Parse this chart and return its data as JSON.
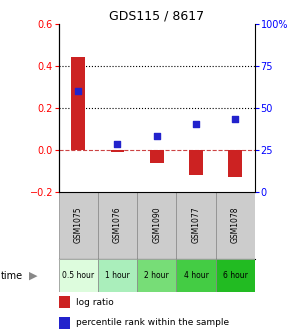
{
  "title": "GDS115 / 8617",
  "categories": [
    "GSM1075",
    "GSM1076",
    "GSM1090",
    "GSM1077",
    "GSM1078"
  ],
  "log_ratio": [
    0.44,
    -0.01,
    -0.065,
    -0.12,
    -0.13
  ],
  "percentile": [
    60,
    28,
    33,
    40,
    43
  ],
  "ylim_left": [
    -0.2,
    0.6
  ],
  "ylim_right": [
    0,
    100
  ],
  "yticks_left": [
    -0.2,
    0.0,
    0.2,
    0.4,
    0.6
  ],
  "yticks_right": [
    0,
    25,
    50,
    75,
    100
  ],
  "time_labels": [
    "0.5 hour",
    "1 hour",
    "2 hour",
    "4 hour",
    "6 hour"
  ],
  "time_colors": [
    "#ddfcdd",
    "#aaeebb",
    "#77dd77",
    "#44cc44",
    "#22bb22"
  ],
  "bar_color": "#cc2222",
  "dot_color": "#2222cc",
  "bg_color_samples": "#cccccc",
  "legend_bar_label": "log ratio",
  "legend_dot_label": "percentile rank within the sample"
}
